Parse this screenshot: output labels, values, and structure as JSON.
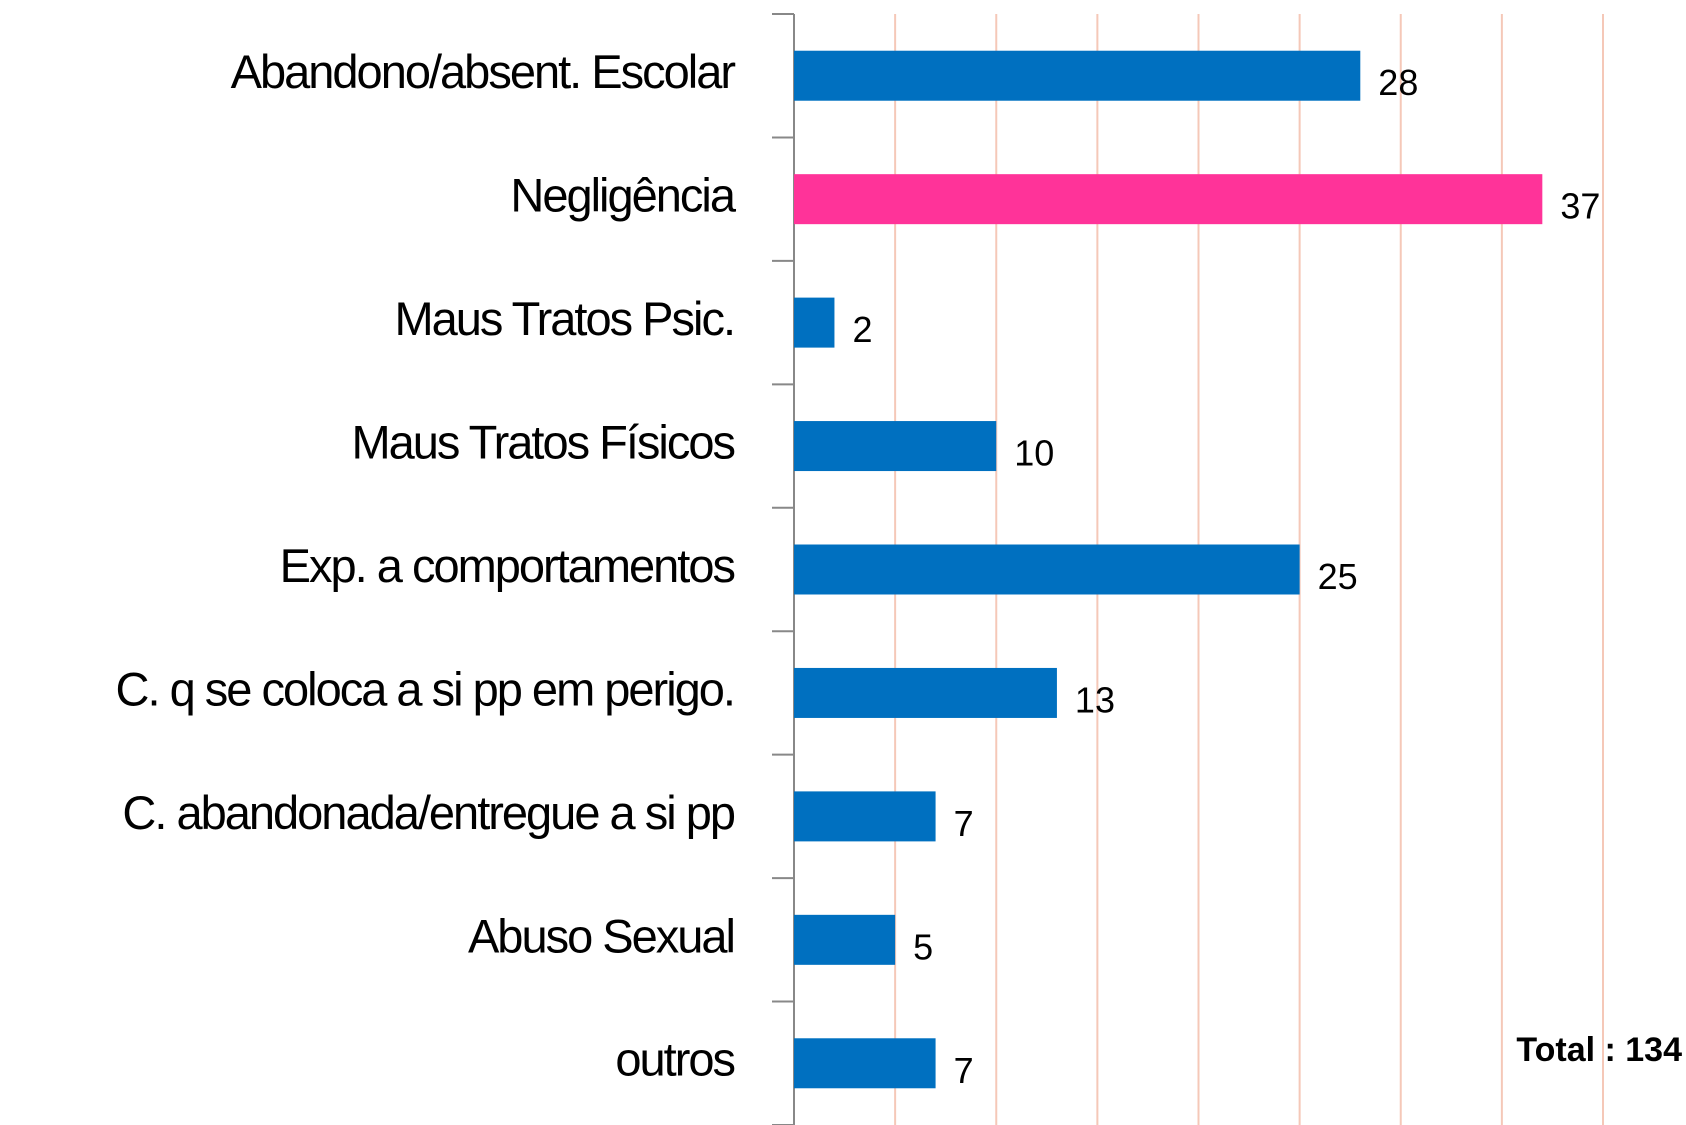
{
  "chart_data": {
    "type": "barh",
    "categories": [
      "Abandono/absent. Escolar",
      "Negligência",
      "Maus Tratos Psic.",
      "Maus Tratos Físicos",
      "Exp. a comportamentos",
      "C. q se coloca a si pp em perigo.",
      "C. abandonada/entregue a si pp",
      "Abuso Sexual",
      "outros"
    ],
    "values": [
      28,
      37,
      2,
      10,
      25,
      13,
      7,
      5,
      7
    ],
    "colors": [
      "#0070c0",
      "#ff3399",
      "#0070c0",
      "#0070c0",
      "#0070c0",
      "#0070c0",
      "#0070c0",
      "#0070c0",
      "#0070c0"
    ],
    "xlim": [
      0,
      40
    ],
    "xticks": [
      5,
      10,
      15,
      20,
      25,
      30,
      35,
      40
    ],
    "grid": true,
    "annotation": "Total : 134"
  }
}
